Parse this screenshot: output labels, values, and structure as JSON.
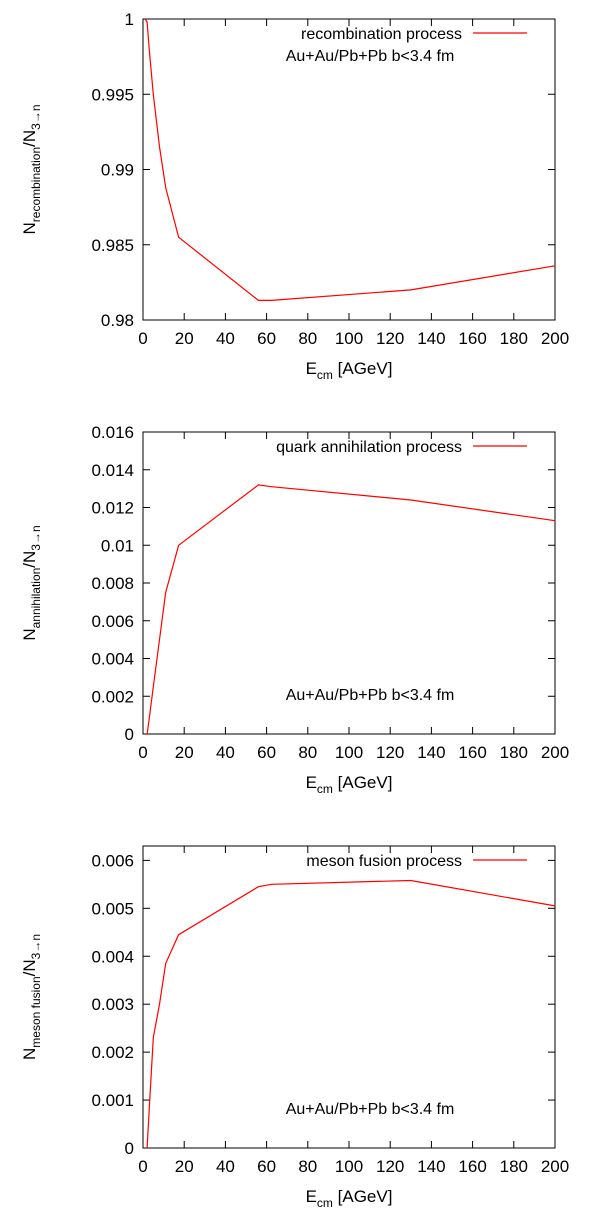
{
  "chart_data": [
    {
      "type": "line",
      "xlabel": {
        "main": "E",
        "sub": "cm",
        "rest": " [AGeV]"
      },
      "ylabel": {
        "main": "N",
        "sub": "recombination",
        "mid": "/N",
        "sub2": "3→n"
      },
      "xlim": [
        0,
        200
      ],
      "ylim": [
        0.98,
        1.0
      ],
      "xticks": [
        "0",
        "20",
        "40",
        "60",
        "80",
        "100",
        "120",
        "140",
        "160",
        "180",
        "200"
      ],
      "yticks": [
        "0.98",
        "0.985",
        "0.99",
        "0.995",
        "1"
      ],
      "annotation": "Au+Au/Pb+Pb b<3.4 fm",
      "annotation_position": "top",
      "legend_placement": "top-right",
      "series": [
        {
          "name": "recombination process",
          "color": "#ff0000",
          "x": [
            1.0,
            2.0,
            3.0,
            5.0,
            8.0,
            11.0,
            17.3,
            56.0,
            62.4,
            130.0,
            200.0
          ],
          "y": [
            1.0,
            0.9998,
            0.998,
            0.995,
            0.9915,
            0.9888,
            0.9855,
            0.9813,
            0.9813,
            0.982,
            0.9836
          ]
        }
      ]
    },
    {
      "type": "line",
      "xlabel": {
        "main": "E",
        "sub": "cm",
        "rest": " [AGeV]"
      },
      "ylabel": {
        "main": "N",
        "sub": "annihilation",
        "mid": "/N",
        "sub2": "3→n"
      },
      "xlim": [
        0,
        200
      ],
      "ylim": [
        0,
        0.016
      ],
      "xticks": [
        "0",
        "20",
        "40",
        "60",
        "80",
        "100",
        "120",
        "140",
        "160",
        "180",
        "200"
      ],
      "yticks": [
        "0",
        "0.002",
        "0.004",
        "0.006",
        "0.008",
        "0.01",
        "0.012",
        "0.014",
        "0.016"
      ],
      "annotation": "Au+Au/Pb+Pb b<3.4 fm",
      "annotation_position": "bottom",
      "legend_placement": "top-right",
      "series": [
        {
          "name": "quark annihilation process",
          "color": "#ff0000",
          "x": [
            2.0,
            3.0,
            5.0,
            8.0,
            11.0,
            17.3,
            56.0,
            62.4,
            130.0,
            200.0
          ],
          "y": [
            0.0,
            0.0008,
            0.0025,
            0.005,
            0.0075,
            0.01,
            0.0132,
            0.0131,
            0.0124,
            0.0113
          ]
        }
      ]
    },
    {
      "type": "line",
      "xlabel": {
        "main": "E",
        "sub": "cm",
        "rest": " [AGeV]"
      },
      "ylabel": {
        "main": "N",
        "sub": "meson fusion",
        "mid": "/N",
        "sub2": "3→n"
      },
      "xlim": [
        0,
        200
      ],
      "ylim": [
        0,
        0.0063
      ],
      "xticks": [
        "0",
        "20",
        "40",
        "60",
        "80",
        "100",
        "120",
        "140",
        "160",
        "180",
        "200"
      ],
      "yticks": [
        "0",
        "0.001",
        "0.002",
        "0.003",
        "0.004",
        "0.005",
        "0.006"
      ],
      "annotation": "Au+Au/Pb+Pb b<3.4 fm",
      "annotation_position": "bottom",
      "legend_placement": "top-right",
      "series": [
        {
          "name": "meson fusion process",
          "color": "#ff0000",
          "x": [
            2.0,
            3.0,
            5.0,
            8.0,
            11.0,
            17.3,
            56.0,
            62.4,
            130.0,
            200.0
          ],
          "y": [
            0.0,
            0.0008,
            0.0023,
            0.003,
            0.00385,
            0.00445,
            0.00545,
            0.0055,
            0.00558,
            0.00505
          ]
        }
      ]
    }
  ]
}
